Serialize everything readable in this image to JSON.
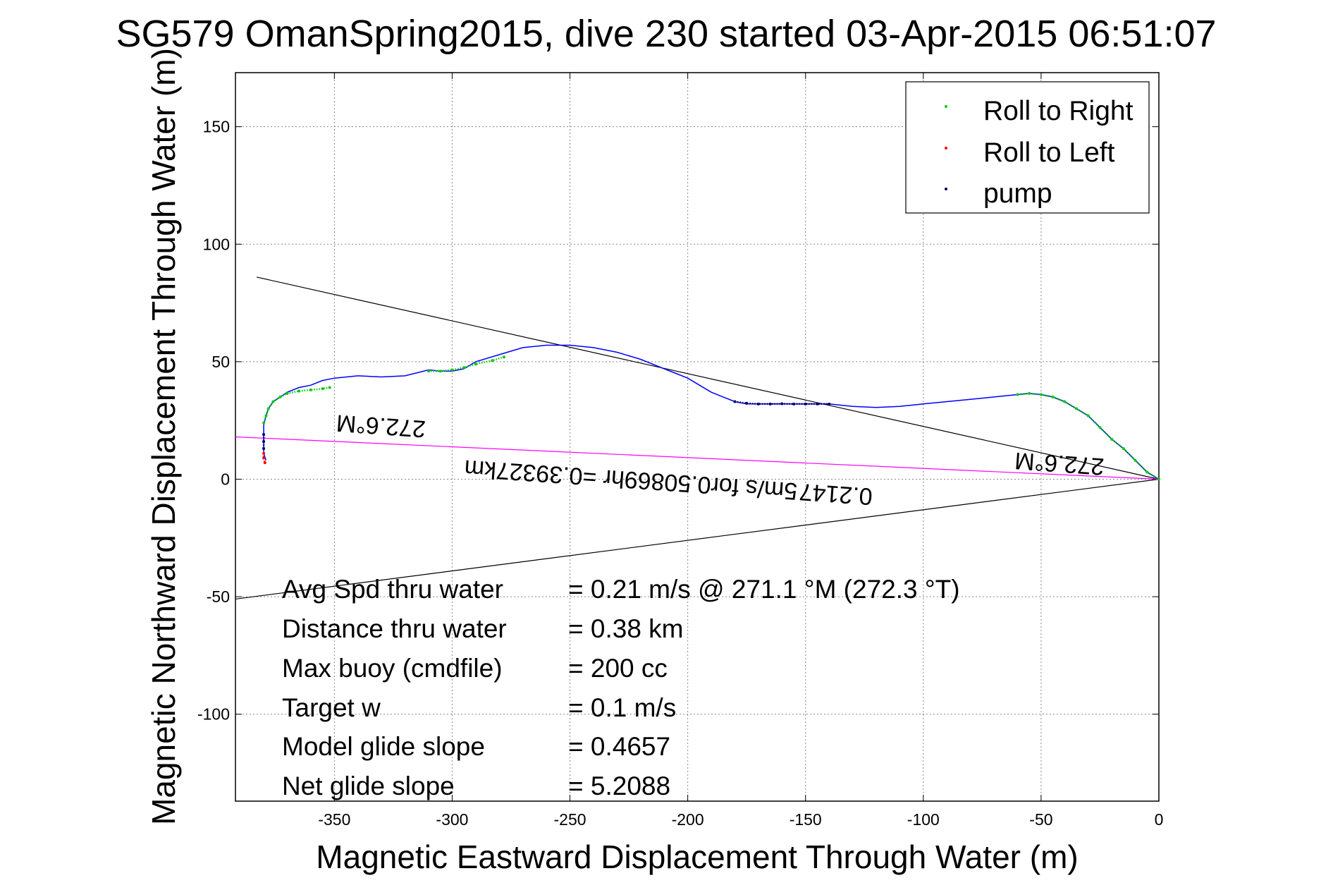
{
  "title": "SG579 OmanSpring2015, dive 230 started 03-Apr-2015 06:51:07",
  "chart_data": {
    "type": "line",
    "xlabel": "Magnetic Eastward Displacement Through Water (m)",
    "ylabel": "Magnetic Northward Displacement Through Water (m)",
    "xlim": [
      -392,
      0
    ],
    "ylim": [
      -137,
      173
    ],
    "xticks": [
      -350,
      -300,
      -250,
      -200,
      -150,
      -100,
      -50,
      0
    ],
    "yticks": [
      -100,
      -50,
      0,
      50,
      100,
      150
    ],
    "grid": true,
    "legend_position": "top-right",
    "legend": [
      {
        "label": "Roll to Right",
        "color": "#00cc00"
      },
      {
        "label": "Roll to Left",
        "color": "#ff0000"
      },
      {
        "label": "pump",
        "color": "#000066"
      }
    ],
    "series": [
      {
        "color": "#0000ff",
        "x": [
          0,
          -5,
          -10,
          -15,
          -20,
          -25,
          -30,
          -35,
          -40,
          -45,
          -50,
          -55,
          -60,
          -70,
          -80,
          -90,
          -100,
          -110,
          -120,
          -130,
          -140,
          -150,
          -160,
          -170,
          -175,
          -180,
          -185,
          -190,
          -195,
          -200,
          -205,
          -210,
          -220,
          -230,
          -240,
          -250,
          -260,
          -270,
          -280,
          -290,
          -295,
          -300,
          -305,
          -310,
          -320,
          -330,
          -340,
          -350,
          -355,
          -360,
          -365,
          -370,
          -373,
          -376,
          -378,
          -379,
          -380,
          -380,
          -380,
          -380,
          -379
        ],
        "y": [
          0,
          3,
          8,
          13,
          17,
          22,
          27,
          30,
          33,
          35,
          36,
          36.5,
          36,
          35,
          34,
          33,
          32,
          31,
          30.5,
          31,
          32,
          32,
          32,
          32,
          32,
          33,
          35,
          37,
          40,
          43,
          45,
          47,
          51,
          54,
          56,
          57,
          57,
          56,
          53,
          50,
          47,
          46,
          46,
          46.5,
          44,
          43.5,
          44,
          43,
          42,
          40,
          39,
          37,
          35,
          33,
          30,
          27,
          23,
          19,
          15,
          11,
          8
        ]
      }
    ],
    "roll_right_segments": [
      {
        "x": [
          -352,
          -355,
          -360,
          -365,
          -370,
          -373,
          -376,
          -378,
          -379,
          -380
        ],
        "y": [
          39,
          38.5,
          38,
          37.5,
          36.5,
          35,
          33,
          30,
          27,
          24
        ]
      },
      {
        "x": [
          -278,
          -283,
          -290,
          -295,
          -300,
          -305,
          -310
        ],
        "y": [
          52,
          50.5,
          49,
          47.5,
          46.5,
          46,
          46
        ]
      },
      {
        "x": [
          0,
          -5,
          -10,
          -15,
          -20,
          -25,
          -30,
          -35,
          -40,
          -45,
          -50,
          -55,
          -60
        ],
        "y": [
          0,
          3,
          8,
          13,
          17,
          22,
          27,
          30,
          33,
          35,
          36,
          36.5,
          36
        ]
      }
    ],
    "roll_left_segments": [
      {
        "x": [
          -380,
          -380,
          -379.5
        ],
        "y": [
          11,
          9,
          7
        ]
      }
    ],
    "pump_segments": [
      {
        "x": [
          -180,
          -175,
          -170,
          -165,
          -160,
          -155,
          -150,
          -145,
          -140
        ],
        "y": [
          33,
          32.3,
          32,
          32,
          32.1,
          32,
          32,
          32,
          32
        ]
      },
      {
        "x": [
          -380,
          -380,
          -380
        ],
        "y": [
          19,
          16,
          13
        ]
      }
    ],
    "reference_lines": [
      {
        "color": "#000000",
        "x": [
          0,
          -383
        ],
        "y": [
          0,
          86
        ]
      },
      {
        "color": "#000000",
        "x": [
          0,
          -392
        ],
        "y": [
          0,
          -51
        ]
      },
      {
        "color": "#ff00ff",
        "x": [
          0,
          -392
        ],
        "y": [
          0,
          18
        ]
      }
    ],
    "rotated_annotations": [
      {
        "text": "272.6°M",
        "x": -330,
        "y": 26
      },
      {
        "text": "272.6°M",
        "x": -42,
        "y": 10
      },
      {
        "text": "0.2147 5m/s for0.50869hr =0.39327km",
        "x": -208,
        "y": 2
      }
    ],
    "stats_labels": [
      "Avg Spd thru water",
      "Distance thru water",
      "Max buoy (cmdfile)",
      "Target w",
      "Model glide slope",
      "Net glide slope"
    ],
    "stats_values": [
      "=  0.21 m/s @ 271.1 °M (272.3 °T)",
      "=  0.38 km",
      "= 200 cc",
      "= 0.1 m/s",
      "= 0.4657",
      "= 5.2088"
    ]
  }
}
